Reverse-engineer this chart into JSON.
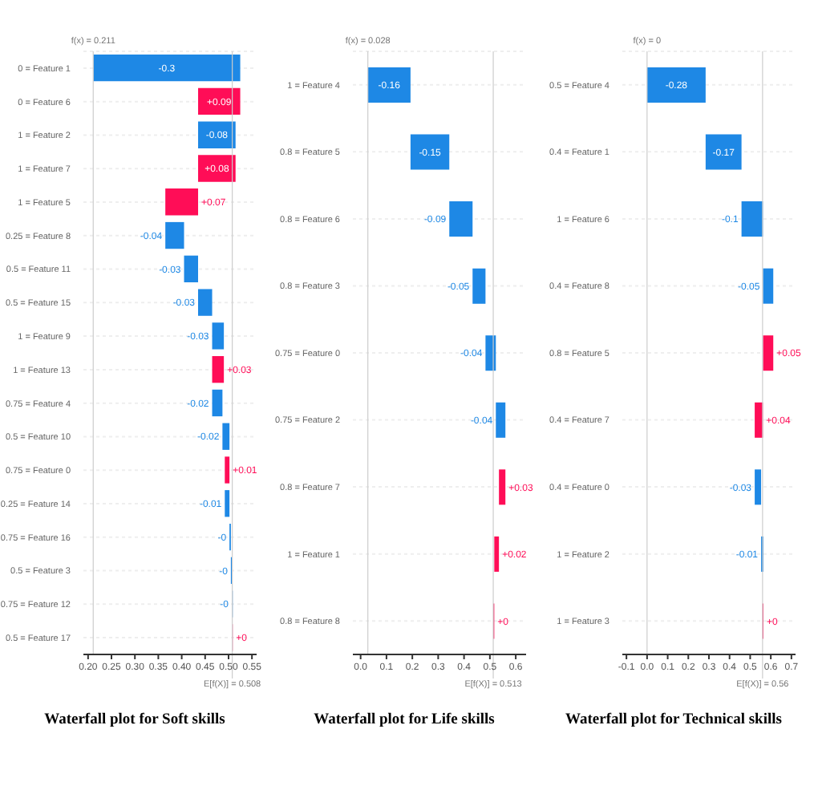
{
  "chart_data": [
    {
      "type": "bar",
      "orientation": "horizontal",
      "title": "Waterfall plot for Soft skills",
      "categories": [
        "0 = Feature 1",
        "0 = Feature 6",
        "1 = Feature 2",
        "1 = Feature 7",
        "1 = Feature 5",
        "0.25 = Feature 8",
        "0.5 = Feature 11",
        "0.5 = Feature 15",
        "1 = Feature 9",
        "1 = Feature 13",
        "0.75 = Feature 4",
        "0.5 = Feature 10",
        "0.75 = Feature 0",
        "0.25 = Feature 14",
        "0.75 = Feature 16",
        "0.5 = Feature 3",
        "0.75 = Feature 12",
        "0.5 = Feature 17"
      ],
      "values": [
        -0.314,
        0.09,
        -0.08,
        0.08,
        0.07,
        -0.04,
        -0.03,
        -0.03,
        -0.025,
        0.025,
        -0.022,
        -0.015,
        0.01,
        -0.01,
        -0.003,
        -0.002,
        -0.002,
        0.001
      ],
      "base": [
        0.525,
        0.435,
        0.515,
        0.435,
        0.365,
        0.405,
        0.435,
        0.465,
        0.49,
        0.465,
        0.487,
        0.502,
        0.492,
        0.502,
        0.505,
        0.507,
        0.509,
        0.508
      ],
      "colors": [
        "#1e88e5",
        "#ff0d57",
        "#1e88e5",
        "#ff0d57",
        "#ff0d57",
        "#1e88e5",
        "#1e88e5",
        "#1e88e5",
        "#1e88e5",
        "#ff0d57",
        "#1e88e5",
        "#1e88e5",
        "#ff0d57",
        "#1e88e5",
        "#1e88e5",
        "#1e88e5",
        "#1e88e5",
        "#ff0d57"
      ],
      "value_labels": [
        "-0.3",
        "+0.09",
        "-0.08",
        "+0.08",
        "+0.07",
        "-0.04",
        "-0.03",
        "-0.03",
        "-0.03",
        "+0.03",
        "-0.02",
        "-0.02",
        "+0.01",
        "-0.01",
        "-0",
        "-0",
        "-0",
        "+0"
      ],
      "xlim": [
        0.19,
        0.56
      ],
      "xticks": [
        {
          "value": 0.2,
          "label": "0.20"
        },
        {
          "value": 0.25,
          "label": "0.25"
        },
        {
          "value": 0.3,
          "label": "0.30"
        },
        {
          "value": 0.35,
          "label": "0.35"
        },
        {
          "value": 0.4,
          "label": "0.40"
        },
        {
          "value": 0.45,
          "label": "0.45"
        },
        {
          "value": 0.5,
          "label": "0.50"
        },
        {
          "value": 0.55,
          "label": "0.55"
        }
      ],
      "ref_lines": [
        {
          "axis": "x",
          "value": 0.211,
          "label": "f(x) = 0.211"
        },
        {
          "axis": "x",
          "value": 0.508,
          "label": "E[f(X)] = 0.508"
        }
      ],
      "grid": "y"
    },
    {
      "type": "bar",
      "orientation": "horizontal",
      "title": "Waterfall plot for Life skills",
      "categories": [
        "1 = Feature 4",
        "0.8 = Feature 5",
        "0.8 = Feature 6",
        "0.8 = Feature 3",
        "0.75 = Feature 0",
        "0.75 = Feature 2",
        "0.8 = Feature 7",
        "1 = Feature 1",
        "0.8 = Feature 8"
      ],
      "values": [
        -0.165,
        -0.15,
        -0.09,
        -0.05,
        -0.04,
        -0.037,
        0.025,
        0.018,
        0.004
      ],
      "base": [
        0.193,
        0.343,
        0.433,
        0.483,
        0.523,
        0.56,
        0.535,
        0.517,
        0.513
      ],
      "colors": [
        "#1e88e5",
        "#1e88e5",
        "#1e88e5",
        "#1e88e5",
        "#1e88e5",
        "#1e88e5",
        "#ff0d57",
        "#ff0d57",
        "#ff0d57"
      ],
      "value_labels": [
        "-0.16",
        "-0.15",
        "-0.09",
        "-0.05",
        "-0.04",
        "-0.04",
        "+0.03",
        "+0.02",
        "+0"
      ],
      "xlim": [
        -0.03,
        0.64
      ],
      "xticks": [
        {
          "value": 0,
          "label": "0.0"
        },
        0.1,
        0.2,
        0.3,
        0.4,
        0.5,
        0.6
      ],
      "ref_lines": [
        {
          "axis": "x",
          "value": 0.028,
          "label": "f(x) = 0.028"
        },
        {
          "axis": "x",
          "value": 0.513,
          "label": "E[f(X)] = 0.513"
        }
      ],
      "grid": "y"
    },
    {
      "type": "bar",
      "orientation": "horizontal",
      "title": "Waterfall plot for Technical skills",
      "categories": [
        "0.5 = Feature 4",
        "0.4 = Feature 1",
        "1 = Feature 6",
        "0.4 = Feature 8",
        "0.8 = Feature 5",
        "0.4 = Feature 7",
        "0.4 = Feature 0",
        "1 = Feature 2",
        "1 = Feature 3"
      ],
      "values": [
        -0.284,
        -0.174,
        -0.104,
        -0.05,
        0.05,
        0.04,
        -0.031,
        -0.011,
        0.004
      ],
      "base": [
        0.284,
        0.458,
        0.562,
        0.612,
        0.562,
        0.522,
        0.553,
        0.564,
        0.56
      ],
      "colors": [
        "#1e88e5",
        "#1e88e5",
        "#1e88e5",
        "#1e88e5",
        "#ff0d57",
        "#ff0d57",
        "#1e88e5",
        "#1e88e5",
        "#ff0d57"
      ],
      "value_labels": [
        "-0.28",
        "-0.17",
        "-0.1",
        "-0.05",
        "+0.05",
        "+0.04",
        "-0.03",
        "-0.01",
        "+0"
      ],
      "xlim": [
        -0.12,
        0.72
      ],
      "xticks": [
        -0.1,
        {
          "value": 0,
          "label": "0.0"
        },
        0.1,
        0.2,
        0.3,
        0.4,
        0.5,
        0.6,
        0.7
      ],
      "ref_lines": [
        {
          "axis": "x",
          "value": 0,
          "label": "f(x) = 0"
        },
        {
          "axis": "x",
          "value": 0.56,
          "label": "E[f(X)] = 0.56"
        }
      ],
      "grid": "y"
    }
  ]
}
